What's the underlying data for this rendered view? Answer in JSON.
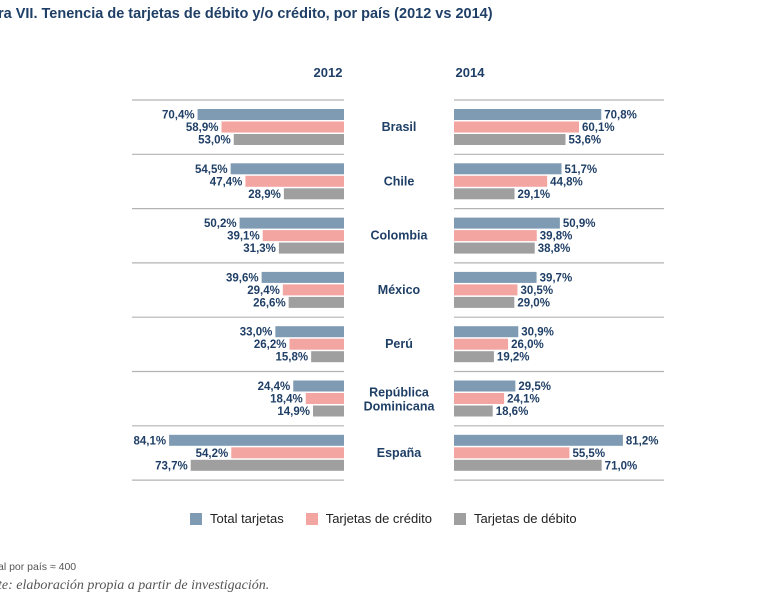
{
  "title": "ra VII. Tenencia de tarjetas de débito y/o crédito, por país (2012 vs 2014)",
  "note": "al por país  ≈  400",
  "source": "te: elaboración propia a partir de investigación.",
  "colors": {
    "total": "#7f9bb3",
    "credito": "#f3a5a2",
    "debito": "#9f9f9f",
    "text": "#1f3f66",
    "divider": "#b3b3b3"
  },
  "chart_data": {
    "type": "bar",
    "orientation": "horizontal",
    "panels": [
      "2012",
      "2014"
    ],
    "categories": [
      "Brasil",
      "Chile",
      "Colombia",
      "México",
      "Perú",
      "República Dominicana",
      "España"
    ],
    "series": [
      {
        "name": "Total tarjetas",
        "values_2012": [
          70.4,
          54.5,
          50.2,
          39.6,
          33.0,
          24.4,
          84.1
        ],
        "values_2014": [
          70.8,
          51.7,
          50.9,
          39.7,
          30.9,
          29.5,
          81.2
        ]
      },
      {
        "name": "Tarjetas de crédito",
        "values_2012": [
          58.9,
          47.4,
          39.1,
          29.4,
          26.2,
          18.4,
          54.2
        ],
        "values_2014": [
          60.1,
          44.8,
          39.8,
          30.5,
          26.0,
          24.1,
          55.5
        ]
      },
      {
        "name": "Tarjetas de débito",
        "values_2012": [
          53.0,
          28.9,
          31.3,
          26.6,
          15.8,
          14.9,
          73.7
        ],
        "values_2014": [
          53.6,
          29.1,
          38.8,
          29.0,
          19.2,
          18.6,
          71.0
        ]
      }
    ],
    "value_labels": {
      "2012": [
        [
          "70,4%",
          "58,9%",
          "53,0%"
        ],
        [
          "54,5%",
          "47,4%",
          "28,9%"
        ],
        [
          "50,2%",
          "39,1%",
          "31,3%"
        ],
        [
          "39,6%",
          "29,4%",
          "26,6%"
        ],
        [
          "33,0%",
          "26,2%",
          "15,8%"
        ],
        [
          "24,4%",
          "18,4%",
          "14,9%"
        ],
        [
          "84,1%",
          "54,2%",
          "73,7%"
        ]
      ],
      "2014": [
        [
          "70,8%",
          "60,1%",
          "53,6%"
        ],
        [
          "51,7%",
          "44,8%",
          "29,1%"
        ],
        [
          "50,9%",
          "39,8%",
          "38,8%"
        ],
        [
          "39,7%",
          "30,5%",
          "29,0%"
        ],
        [
          "30,9%",
          "26,0%",
          "19,2%"
        ],
        [
          "29,5%",
          "24,1%",
          "18,6%"
        ],
        [
          "81,2%",
          "55,5%",
          "71,0%"
        ]
      ]
    },
    "xlim": [
      0,
      100
    ],
    "legend_position": "bottom"
  }
}
